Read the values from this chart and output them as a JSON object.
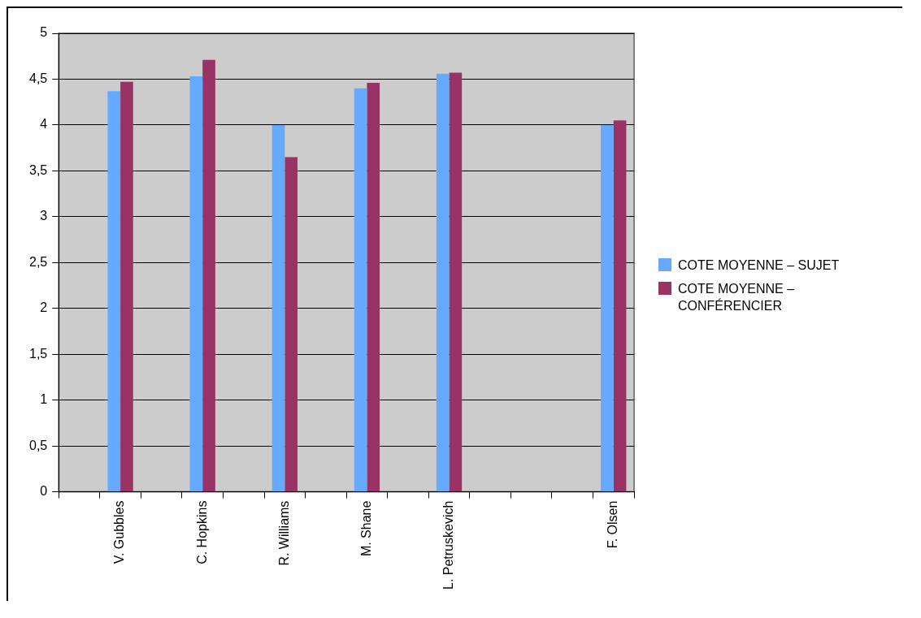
{
  "chart_data": {
    "type": "bar",
    "categories": [
      null,
      "V. Gubbles",
      null,
      "C. Hopkins",
      null,
      "R. Williams",
      null,
      "M. Shane",
      null,
      "L. Petruskevich",
      null,
      null,
      null,
      "F. Olsen"
    ],
    "series": [
      {
        "name": "COTE MOYENNE – SUJET",
        "color": "#66aaff",
        "values": [
          null,
          4.37,
          null,
          4.53,
          null,
          4.0,
          null,
          4.4,
          null,
          4.56,
          null,
          null,
          null,
          4.0
        ]
      },
      {
        "name": "COTE MOYENNE – CONFÉRENCIER",
        "color": "#993366",
        "values": [
          null,
          4.47,
          null,
          4.71,
          null,
          3.65,
          null,
          4.46,
          null,
          4.57,
          null,
          null,
          null,
          4.05
        ]
      }
    ],
    "ylim": [
      0,
      5
    ],
    "yticks": [
      0,
      {
        "value": 0.5,
        "label": "0,5"
      },
      1,
      {
        "value": 1.5,
        "label": "1,5"
      },
      2,
      {
        "value": 2.5,
        "label": "2,5"
      },
      3,
      {
        "value": 3.5,
        "label": "3,5"
      },
      4,
      {
        "value": 4.5,
        "label": "4,5"
      },
      5
    ],
    "grid": "y",
    "legend": "right"
  }
}
